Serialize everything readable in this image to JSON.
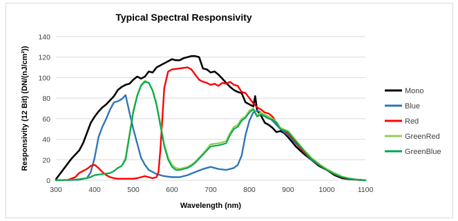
{
  "chart_data": {
    "type": "line",
    "title": "Typical Spectral Responsivity",
    "xlabel": "Wavelength (nm)",
    "ylabel": "Responsivity (12 Bit) (DN/(nJ/cm²))",
    "xlim": [
      300,
      1100
    ],
    "ylim": [
      0,
      140
    ],
    "xticks": [
      300,
      400,
      500,
      600,
      700,
      800,
      900,
      1000,
      1100
    ],
    "yticks": [
      0,
      20,
      40,
      60,
      80,
      100,
      120,
      140
    ],
    "grid": true,
    "legend_position": "right",
    "series": [
      {
        "name": "Mono",
        "color": "#000000",
        "width": 2.6,
        "x": [
          300,
          310,
          320,
          330,
          340,
          350,
          360,
          370,
          380,
          390,
          400,
          410,
          420,
          430,
          440,
          450,
          460,
          470,
          480,
          490,
          500,
          510,
          520,
          530,
          540,
          550,
          560,
          570,
          580,
          590,
          600,
          610,
          620,
          630,
          640,
          650,
          660,
          670,
          680,
          690,
          700,
          710,
          720,
          730,
          740,
          750,
          760,
          770,
          780,
          790,
          800,
          810,
          815,
          820,
          830,
          840,
          850,
          860,
          870,
          880,
          890,
          900,
          920,
          940,
          960,
          980,
          1000,
          1020,
          1040,
          1060,
          1080,
          1100
        ],
        "y": [
          1,
          6,
          11,
          16,
          21,
          25,
          29,
          36,
          46,
          56,
          62,
          67,
          71,
          74,
          78,
          82,
          88,
          91,
          93,
          94,
          98,
          101,
          99,
          101,
          106,
          105,
          110,
          112,
          114,
          116,
          118,
          117,
          117,
          119,
          120,
          121,
          121,
          120,
          109,
          108,
          105,
          106,
          103,
          99,
          95,
          91,
          88,
          86,
          85,
          76,
          74,
          72,
          82,
          68,
          63,
          56,
          54,
          51,
          47,
          48,
          46,
          42,
          33,
          26,
          20,
          14,
          10,
          5,
          2,
          1,
          0.5,
          0
        ],
        "dash": null
      },
      {
        "name": "Blue",
        "color": "#2e75b6",
        "width": 2.4,
        "x": [
          300,
          330,
          360,
          380,
          390,
          400,
          410,
          420,
          430,
          440,
          450,
          460,
          470,
          480,
          490,
          500,
          510,
          520,
          530,
          540,
          560,
          580,
          600,
          620,
          640,
          660,
          680,
          700,
          720,
          740,
          760,
          770,
          780,
          790,
          800,
          810,
          820,
          830,
          840,
          850,
          860,
          870,
          880,
          900,
          920,
          940,
          960,
          980,
          1000,
          1020,
          1040,
          1060,
          1080,
          1100
        ],
        "y": [
          0,
          0.2,
          0.5,
          2,
          8,
          22,
          42,
          52,
          60,
          69,
          76,
          77,
          79,
          83,
          66,
          50,
          36,
          22,
          15,
          10,
          6,
          4,
          3,
          3,
          5,
          8,
          11,
          13,
          11,
          10,
          12,
          15,
          24,
          44,
          58,
          66,
          68,
          66,
          63,
          61,
          58,
          54,
          50,
          44,
          36,
          28,
          20,
          15,
          10,
          6,
          3,
          1.5,
          0.5,
          0
        ]
      },
      {
        "name": "Red",
        "color": "#ff0000",
        "width": 2.4,
        "x": [
          300,
          330,
          350,
          360,
          370,
          380,
          390,
          400,
          410,
          420,
          430,
          440,
          450,
          460,
          480,
          500,
          510,
          520,
          530,
          540,
          550,
          560,
          565,
          570,
          575,
          580,
          590,
          600,
          620,
          640,
          650,
          660,
          670,
          680,
          690,
          700,
          710,
          720,
          730,
          740,
          750,
          760,
          770,
          780,
          790,
          800,
          810,
          820,
          830,
          840,
          850,
          860,
          870,
          880,
          900,
          920,
          940,
          960,
          980,
          1000,
          1020,
          1040,
          1060,
          1080,
          1100
        ],
        "y": [
          0,
          0.3,
          3,
          7,
          9,
          11,
          14,
          15,
          12,
          8,
          5,
          3,
          2,
          1.5,
          1.5,
          1.5,
          2,
          3,
          4,
          3,
          2,
          3,
          8,
          30,
          60,
          90,
          106,
          108,
          109,
          110,
          108,
          103,
          98,
          96,
          95,
          93,
          94,
          92,
          95,
          94,
          96,
          93,
          92,
          86,
          85,
          80,
          75,
          71,
          69,
          66,
          65,
          62,
          56,
          51,
          46,
          37,
          28,
          21,
          15,
          10,
          6,
          3,
          1.5,
          0.5,
          0
        ]
      },
      {
        "name": "GreenRed",
        "color": "#92d050",
        "width": 2.4,
        "x": [
          300,
          340,
          360,
          380,
          390,
          400,
          420,
          440,
          450,
          460,
          470,
          480,
          490,
          500,
          510,
          520,
          530,
          540,
          550,
          560,
          570,
          580,
          590,
          600,
          610,
          620,
          630,
          640,
          650,
          660,
          680,
          700,
          720,
          740,
          750,
          760,
          770,
          780,
          790,
          800,
          810,
          820,
          830,
          840,
          850,
          860,
          870,
          880,
          900,
          920,
          940,
          960,
          980,
          1000,
          1020,
          1040,
          1060,
          1080,
          1100
        ],
        "y": [
          0,
          0.5,
          1,
          2,
          3.5,
          5,
          6,
          7,
          9,
          12,
          14,
          22,
          45,
          68,
          83,
          93,
          97,
          95,
          88,
          75,
          55,
          35,
          22,
          15,
          12,
          11,
          12,
          13,
          15,
          18,
          26,
          35,
          36,
          38,
          46,
          52,
          54,
          60,
          62,
          68,
          70,
          63,
          66,
          64,
          62,
          60,
          57,
          51,
          48,
          39,
          30,
          22,
          16,
          11,
          7,
          3.5,
          1.5,
          0.5,
          0
        ]
      },
      {
        "name": "GreenBlue",
        "color": "#00a650",
        "width": 2.0,
        "x": [
          300,
          340,
          360,
          380,
          390,
          400,
          420,
          440,
          450,
          460,
          470,
          480,
          490,
          500,
          510,
          520,
          530,
          540,
          550,
          560,
          570,
          580,
          590,
          600,
          610,
          620,
          630,
          640,
          650,
          660,
          680,
          700,
          720,
          740,
          750,
          760,
          770,
          780,
          790,
          800,
          810,
          820,
          830,
          840,
          850,
          860,
          870,
          880,
          900,
          920,
          940,
          960,
          980,
          1000,
          1020,
          1040,
          1060,
          1080,
          1100
        ],
        "y": [
          0,
          0.4,
          1,
          2,
          3,
          5,
          6,
          7,
          9,
          12,
          14,
          20,
          43,
          66,
          82,
          92,
          96,
          95,
          87,
          73,
          53,
          33,
          20,
          13,
          10,
          10,
          11,
          12,
          14,
          17,
          25,
          33,
          34,
          36,
          44,
          50,
          52,
          58,
          61,
          66,
          69,
          62,
          64,
          62,
          60,
          59,
          56,
          50,
          47,
          38,
          29,
          21,
          15,
          10,
          6,
          3,
          1.5,
          0.5,
          0
        ]
      }
    ]
  }
}
